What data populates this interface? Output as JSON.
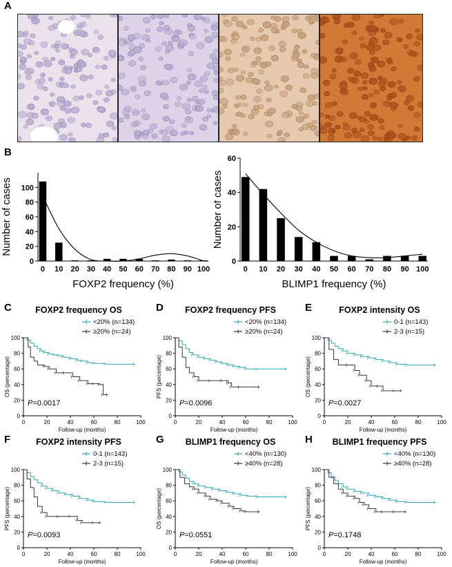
{
  "panel_labels": [
    "A",
    "B",
    "C",
    "D",
    "E",
    "F",
    "G",
    "H"
  ],
  "micrographs": [
    {
      "stain": "#e9e1ec"
    },
    {
      "stain": "#ddd3e8"
    },
    {
      "stain": "#e6c9ae"
    },
    {
      "stain": "#d17a38"
    }
  ],
  "chart_data": [
    {
      "type": "bar",
      "categories": [
        "0",
        "10",
        "20",
        "30",
        "40",
        "50",
        "60",
        "70",
        "80",
        "90",
        "100"
      ],
      "values": [
        108,
        25,
        1,
        1,
        3,
        3,
        3,
        1,
        2,
        1,
        1
      ],
      "fit_curve": [
        {
          "x": 0,
          "y": 88
        },
        {
          "x": 10,
          "y": 44
        },
        {
          "x": 20,
          "y": 16
        },
        {
          "x": 30,
          "y": 2
        },
        {
          "x": 40,
          "y": -2
        },
        {
          "x": 50,
          "y": -1
        },
        {
          "x": 60,
          "y": 3
        },
        {
          "x": 70,
          "y": 8
        },
        {
          "x": 80,
          "y": 10
        },
        {
          "x": 90,
          "y": 7
        },
        {
          "x": 100,
          "y": -2
        }
      ],
      "xlabel": "FOXP2 frequency (%)",
      "ylabel": "Number of cases",
      "ylim": [
        0,
        120
      ],
      "yticks": [
        0,
        20,
        40,
        60,
        80,
        100
      ]
    },
    {
      "type": "bar",
      "categories": [
        "0",
        "10",
        "20",
        "30",
        "40",
        "50",
        "60",
        "70",
        "80",
        "90",
        "100"
      ],
      "values": [
        49,
        42,
        25,
        14,
        11,
        3,
        3,
        1,
        3,
        3,
        3
      ],
      "fit_curve": [
        {
          "x": 0,
          "y": 51
        },
        {
          "x": 10,
          "y": 39
        },
        {
          "x": 20,
          "y": 28
        },
        {
          "x": 30,
          "y": 18
        },
        {
          "x": 40,
          "y": 11
        },
        {
          "x": 50,
          "y": 6
        },
        {
          "x": 60,
          "y": 3
        },
        {
          "x": 70,
          "y": 2
        },
        {
          "x": 80,
          "y": 2
        },
        {
          "x": 90,
          "y": 3
        },
        {
          "x": 100,
          "y": 4
        }
      ],
      "xlabel": "BLIMP1 frequency (%)",
      "ylabel": "Number of cases",
      "ylim": [
        0,
        60
      ],
      "yticks": [
        0,
        20,
        40,
        60
      ]
    },
    {
      "type": "line",
      "title": "FOXP2 frequency OS",
      "ylabel": "OS (percentage)",
      "xlabel": "Follow-up (months)",
      "pvalue": "=0.0017",
      "xticks": [
        0,
        20,
        40,
        60,
        80,
        100
      ],
      "yticks": [
        0,
        20,
        40,
        60,
        80,
        100
      ],
      "series": [
        {
          "name": "<20% (n=134)",
          "color": "#2aa6b4",
          "x": [
            0,
            3,
            6,
            9,
            12,
            15,
            18,
            22,
            26,
            30,
            34,
            40,
            46,
            50,
            55,
            60,
            70,
            95
          ],
          "y": [
            100,
            97,
            93,
            89,
            86,
            83,
            81,
            79,
            78,
            77,
            75,
            73,
            71,
            70,
            68,
            67,
            66,
            66
          ]
        },
        {
          "name": "≥20% (n=24)",
          "color": "#333333",
          "x": [
            0,
            4,
            6,
            9,
            12,
            18,
            22,
            28,
            35,
            42,
            48,
            55,
            60,
            65,
            68,
            72
          ],
          "y": [
            100,
            88,
            75,
            70,
            65,
            63,
            60,
            55,
            55,
            50,
            45,
            41,
            41,
            40,
            27,
            27
          ]
        }
      ]
    },
    {
      "type": "line",
      "title": "FOXP2 frequency PFS",
      "ylabel": "PFS (percentage)",
      "xlabel": "Follow-up (months)",
      "pvalue": "=0.0096",
      "xticks": [
        0,
        20,
        40,
        60,
        80,
        100
      ],
      "yticks": [
        0,
        20,
        40,
        60,
        80,
        100
      ],
      "series": [
        {
          "name": "<20% (n=134)",
          "color": "#2aa6b4",
          "x": [
            0,
            3,
            6,
            9,
            12,
            15,
            20,
            25,
            30,
            35,
            40,
            45,
            50,
            55,
            60,
            70,
            95
          ],
          "y": [
            100,
            96,
            91,
            86,
            81,
            78,
            75,
            73,
            71,
            69,
            67,
            65,
            63,
            62,
            60,
            60,
            60
          ]
        },
        {
          "name": "≥20% (n=24)",
          "color": "#333333",
          "x": [
            0,
            3,
            6,
            9,
            12,
            16,
            20,
            30,
            40,
            45,
            48,
            55,
            72
          ],
          "y": [
            100,
            88,
            75,
            62,
            55,
            50,
            45,
            45,
            45,
            42,
            37,
            37,
            37
          ]
        }
      ]
    },
    {
      "type": "line",
      "title": "FOXP2 intensity OS",
      "ylabel": "OS (percentage)",
      "xlabel": "Follow-up (months)",
      "pvalue": "=0.0027",
      "xticks": [
        0,
        20,
        40,
        60,
        80,
        100
      ],
      "yticks": [
        0,
        20,
        40,
        60,
        80,
        100
      ],
      "series": [
        {
          "name": "0-1 (n=143)",
          "color": "#2aa6b4",
          "x": [
            0,
            3,
            6,
            9,
            12,
            16,
            20,
            26,
            32,
            38,
            44,
            50,
            56,
            62,
            70,
            95
          ],
          "y": [
            100,
            97,
            93,
            89,
            86,
            83,
            80,
            78,
            76,
            74,
            72,
            70,
            68,
            66,
            65,
            65
          ]
        },
        {
          "name": "2-3 (n=15)",
          "color": "#333333",
          "x": [
            0,
            4,
            8,
            12,
            20,
            26,
            30,
            36,
            40,
            46,
            50,
            60,
            66
          ],
          "y": [
            100,
            85,
            72,
            65,
            65,
            58,
            52,
            45,
            38,
            38,
            32,
            32,
            32
          ]
        }
      ]
    },
    {
      "type": "line",
      "title": "FOXP2 intensity PFS",
      "ylabel": "PFS (percentage)",
      "xlabel": "Follow-up (months)",
      "pvalue": "=0.0093",
      "xticks": [
        0,
        20,
        40,
        60,
        80,
        100
      ],
      "yticks": [
        0,
        20,
        40,
        60,
        80,
        100
      ],
      "series": [
        {
          "name": "0-1 (n=143)",
          "color": "#2aa6b4",
          "x": [
            0,
            3,
            6,
            9,
            12,
            16,
            20,
            25,
            30,
            36,
            42,
            48,
            55,
            60,
            70,
            95
          ],
          "y": [
            100,
            96,
            91,
            87,
            83,
            79,
            76,
            73,
            70,
            68,
            66,
            63,
            61,
            59,
            58,
            58
          ]
        },
        {
          "name": "2-3 (n=15)",
          "color": "#333333",
          "x": [
            0,
            3,
            6,
            9,
            12,
            16,
            20,
            30,
            40,
            46,
            50,
            60,
            66
          ],
          "y": [
            100,
            88,
            77,
            65,
            53,
            45,
            40,
            40,
            40,
            35,
            32,
            32,
            32
          ]
        }
      ]
    },
    {
      "type": "line",
      "title": "BLIMP1 frequency OS",
      "ylabel": "OS (percentage)",
      "xlabel": "Follow-up (months)",
      "pvalue": "=0.0551",
      "xticks": [
        0,
        20,
        40,
        60,
        80,
        100
      ],
      "yticks": [
        0,
        20,
        40,
        60,
        80,
        100
      ],
      "series": [
        {
          "name": "<40% (n=130)",
          "color": "#2aa6b4",
          "x": [
            0,
            3,
            6,
            9,
            12,
            16,
            20,
            26,
            32,
            38,
            44,
            50,
            56,
            62,
            70,
            95
          ],
          "y": [
            100,
            97,
            93,
            89,
            85,
            82,
            79,
            77,
            75,
            73,
            71,
            69,
            67,
            66,
            65,
            65
          ]
        },
        {
          "name": "≥40% (n=28)",
          "color": "#333333",
          "x": [
            0,
            4,
            8,
            12,
            16,
            20,
            26,
            30,
            36,
            40,
            46,
            50,
            56,
            60,
            72
          ],
          "y": [
            100,
            90,
            82,
            78,
            75,
            70,
            66,
            62,
            60,
            57,
            53,
            50,
            47,
            46,
            46
          ]
        }
      ]
    },
    {
      "type": "line",
      "title": "BLIMP1 frequency PFS",
      "ylabel": "PFS (percentage)",
      "xlabel": "Follow-up (months)",
      "pvalue": "=0.1748",
      "xticks": [
        0,
        20,
        40,
        60,
        80,
        100
      ],
      "yticks": [
        0,
        20,
        40,
        60,
        80,
        100
      ],
      "series": [
        {
          "name": "<40% (n=130)",
          "color": "#2aa6b4",
          "x": [
            0,
            3,
            6,
            9,
            12,
            16,
            20,
            26,
            32,
            38,
            44,
            50,
            56,
            62,
            70,
            95
          ],
          "y": [
            100,
            96,
            91,
            86,
            82,
            78,
            75,
            72,
            70,
            67,
            65,
            63,
            61,
            59,
            58,
            58
          ]
        },
        {
          "name": "≥40% (n=28)",
          "color": "#333333",
          "x": [
            0,
            4,
            8,
            12,
            16,
            20,
            26,
            30,
            34,
            38,
            44,
            50,
            60,
            70
          ],
          "y": [
            100,
            90,
            82,
            75,
            70,
            66,
            63,
            58,
            55,
            50,
            46,
            46,
            46,
            46
          ]
        }
      ]
    }
  ]
}
